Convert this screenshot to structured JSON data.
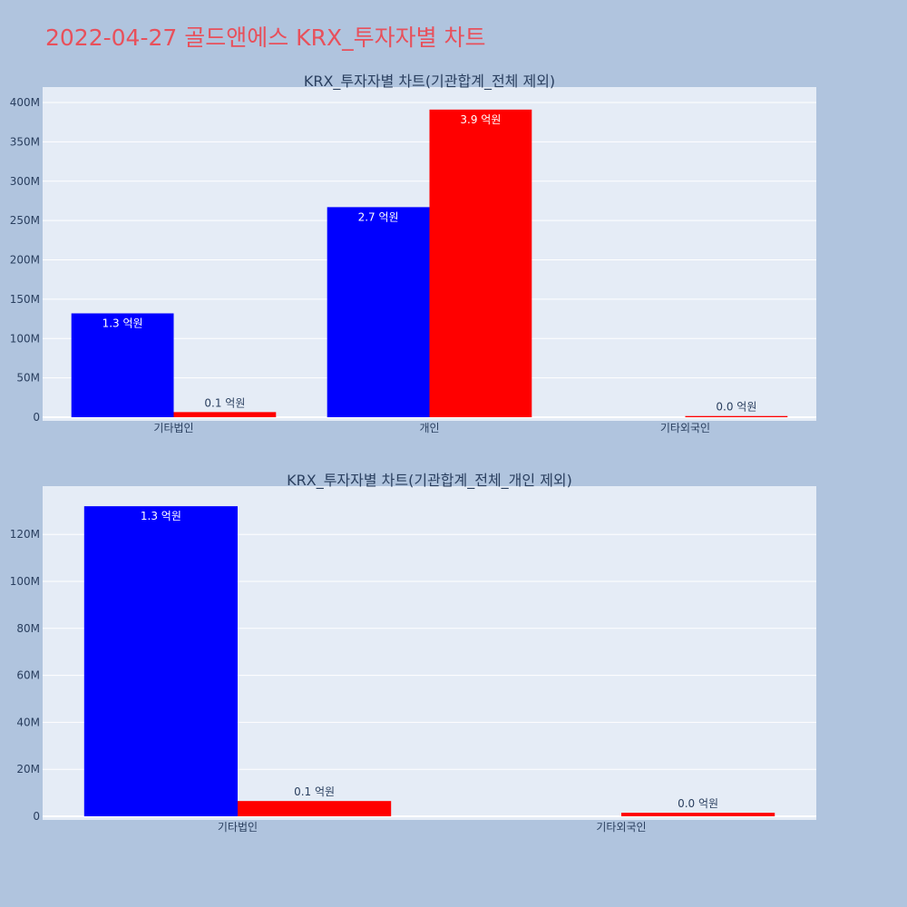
{
  "page": {
    "title": "2022-04-27 골드앤에스 KRX_투자자별 차트"
  },
  "colors": {
    "background": "#b0c4de",
    "plot_bg": "#e5ecf6",
    "buy": "#0000ff",
    "sell": "#ff0000",
    "title": "#e8505b"
  },
  "chart_data": [
    {
      "type": "bar",
      "title": "KRX_투자자별 차트(기관합계_전체 제외)",
      "categories": [
        "기타법인",
        "개인",
        "기타외국인"
      ],
      "series": [
        {
          "values": [
            132000000,
            267000000,
            0
          ],
          "labels": [
            "1.3 억원",
            "2.7 억원",
            ""
          ]
        },
        {
          "values": [
            6500000,
            391000000,
            1500000
          ],
          "labels": [
            "0.1 억원",
            "3.9 억원",
            "0.0 억원"
          ]
        }
      ],
      "ylim": [
        0,
        415000000
      ],
      "yticks": [
        0,
        50000000,
        100000000,
        150000000,
        200000000,
        250000000,
        300000000,
        350000000,
        400000000
      ],
      "ytick_labels": [
        "0",
        "50M",
        "100M",
        "150M",
        "200M",
        "250M",
        "300M",
        "350M",
        "400M"
      ],
      "grid": true,
      "legend": "none"
    },
    {
      "type": "bar",
      "title": "KRX_투자자별 차트(기관합계_전체_개인 제외)",
      "categories": [
        "기타법인",
        "기타외국인"
      ],
      "series": [
        {
          "values": [
            132000000,
            0
          ],
          "labels": [
            "1.3 억원",
            ""
          ]
        },
        {
          "values": [
            6500000,
            1500000
          ],
          "labels": [
            "0.1 억원",
            "0.0 억원"
          ]
        }
      ],
      "ylim": [
        0,
        139000000
      ],
      "yticks": [
        0,
        20000000,
        40000000,
        60000000,
        80000000,
        100000000,
        120000000
      ],
      "ytick_labels": [
        "0",
        "20M",
        "40M",
        "60M",
        "80M",
        "100M",
        "120M"
      ],
      "grid": true,
      "legend": "none"
    }
  ]
}
